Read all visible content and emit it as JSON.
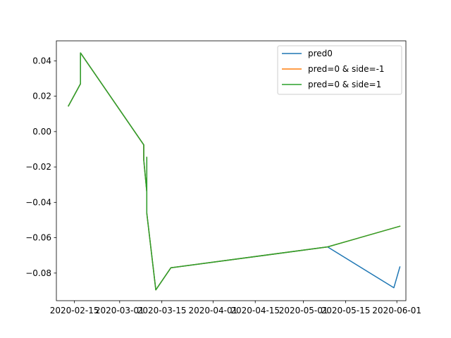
{
  "chart_data": {
    "type": "line",
    "title": "",
    "xlabel": "",
    "ylabel": "",
    "x_type": "date",
    "xlim": [
      "2020-02-09",
      "2020-06-04"
    ],
    "ylim": [
      -0.0956,
      0.0513
    ],
    "x_ticks": [
      {
        "value": "2020-02-15",
        "label": "2020-02-15"
      },
      {
        "value": "2020-03-01",
        "label": "2020-03-01"
      },
      {
        "value": "2020-03-15",
        "label": "2020-03-15"
      },
      {
        "value": "2020-04-01",
        "label": "2020-04-01"
      },
      {
        "value": "2020-04-15",
        "label": "2020-04-15"
      },
      {
        "value": "2020-05-01",
        "label": "2020-05-01"
      },
      {
        "value": "2020-05-15",
        "label": "2020-05-15"
      },
      {
        "value": "2020-06-01",
        "label": "2020-06-01"
      }
    ],
    "y_ticks": [
      {
        "value": 0.04,
        "label": "0.04"
      },
      {
        "value": 0.02,
        "label": "0.02"
      },
      {
        "value": 0.0,
        "label": "0.00"
      },
      {
        "value": -0.02,
        "label": "−0.02"
      },
      {
        "value": -0.04,
        "label": "−0.04"
      },
      {
        "value": -0.06,
        "label": "−0.06"
      },
      {
        "value": -0.08,
        "label": "−0.08"
      }
    ],
    "grid": false,
    "legend_position": "top-right",
    "series": [
      {
        "name": "pred0",
        "color": "#1f77b4",
        "points": [
          [
            "2020-02-13",
            0.0145
          ],
          [
            "2020-02-17",
            0.027
          ],
          [
            "2020-02-17",
            0.0445
          ],
          [
            "2020-03-09",
            -0.0075
          ],
          [
            "2020-03-09",
            -0.016
          ],
          [
            "2020-03-10",
            -0.034
          ],
          [
            "2020-03-10",
            -0.0145
          ],
          [
            "2020-03-10",
            -0.046
          ],
          [
            "2020-03-13",
            -0.0895
          ],
          [
            "2020-03-18",
            -0.077
          ],
          [
            "2020-05-09",
            -0.0652
          ],
          [
            "2020-05-31",
            -0.0883
          ],
          [
            "2020-06-02",
            -0.0765
          ]
        ]
      },
      {
        "name": "pred=0 & side=-1",
        "color": "#ff7f0e",
        "points": [
          [
            "2020-02-13",
            0.0145
          ],
          [
            "2020-02-17",
            0.027
          ],
          [
            "2020-02-17",
            0.0445
          ],
          [
            "2020-03-09",
            -0.0075
          ],
          [
            "2020-03-09",
            -0.016
          ],
          [
            "2020-03-10",
            -0.034
          ],
          [
            "2020-03-10",
            -0.0145
          ],
          [
            "2020-03-10",
            -0.046
          ],
          [
            "2020-03-13",
            -0.0895
          ],
          [
            "2020-03-18",
            -0.077
          ],
          [
            "2020-05-09",
            -0.0652
          ],
          [
            "2020-06-02",
            -0.0535
          ]
        ]
      },
      {
        "name": "pred=0 & side=1",
        "color": "#2ca02c",
        "points": [
          [
            "2020-02-13",
            0.0145
          ],
          [
            "2020-02-17",
            0.027
          ],
          [
            "2020-02-17",
            0.0445
          ],
          [
            "2020-03-09",
            -0.0075
          ],
          [
            "2020-03-09",
            -0.016
          ],
          [
            "2020-03-10",
            -0.034
          ],
          [
            "2020-03-10",
            -0.0145
          ],
          [
            "2020-03-10",
            -0.046
          ],
          [
            "2020-03-13",
            -0.0895
          ],
          [
            "2020-03-18",
            -0.077
          ],
          [
            "2020-05-09",
            -0.0652
          ],
          [
            "2020-06-02",
            -0.0535
          ]
        ]
      }
    ]
  }
}
